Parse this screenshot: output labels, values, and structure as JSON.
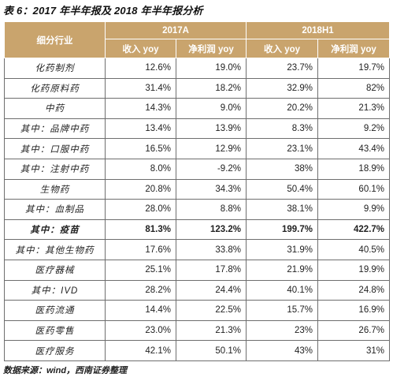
{
  "title": "表 6：2017 年半年报及 2018 年半年报分析",
  "table": {
    "header_industry": "细分行业",
    "year_2017": "2017A",
    "year_2018": "2018H1",
    "sub_revenue": "收入 yoy",
    "sub_profit": "净利润 yoy",
    "rows": [
      [
        "化药制剂",
        "12.6%",
        "19.0%",
        "23.7%",
        "19.7%"
      ],
      [
        "化药原料药",
        "31.4%",
        "18.2%",
        "32.9%",
        "82%"
      ],
      [
        "中药",
        "14.3%",
        "9.0%",
        "20.2%",
        "21.3%"
      ],
      [
        "其中：品牌中药",
        "13.4%",
        "13.9%",
        "8.3%",
        "9.2%"
      ],
      [
        "其中：口服中药",
        "16.5%",
        "12.9%",
        "23.1%",
        "43.4%"
      ],
      [
        "其中：注射中药",
        "8.0%",
        "-9.2%",
        "38%",
        "18.9%"
      ],
      [
        "生物药",
        "20.8%",
        "34.3%",
        "50.4%",
        "60.1%"
      ],
      [
        "其中：血制品",
        "28.0%",
        "8.8%",
        "38.1%",
        "9.9%"
      ],
      [
        "其中：疫苗",
        "81.3%",
        "123.2%",
        "199.7%",
        "422.7%"
      ],
      [
        "其中：其他生物药",
        "17.6%",
        "33.8%",
        "31.9%",
        "40.5%"
      ],
      [
        "医疗器械",
        "25.1%",
        "17.8%",
        "21.9%",
        "19.9%"
      ],
      [
        "其中：IVD",
        "28.2%",
        "24.4%",
        "40.1%",
        "24.8%"
      ],
      [
        "医药流通",
        "14.4%",
        "22.5%",
        "15.7%",
        "16.9%"
      ],
      [
        "医药零售",
        "23.0%",
        "21.3%",
        "23%",
        "26.7%"
      ],
      [
        "医疗服务",
        "42.1%",
        "50.1%",
        "43%",
        "31%"
      ]
    ]
  },
  "source": "数据来源：wind，西南证券整理",
  "colors": {
    "header_bg": "#c9a46d",
    "header_text": "#ffffff",
    "grid": "#6e6e6e"
  }
}
